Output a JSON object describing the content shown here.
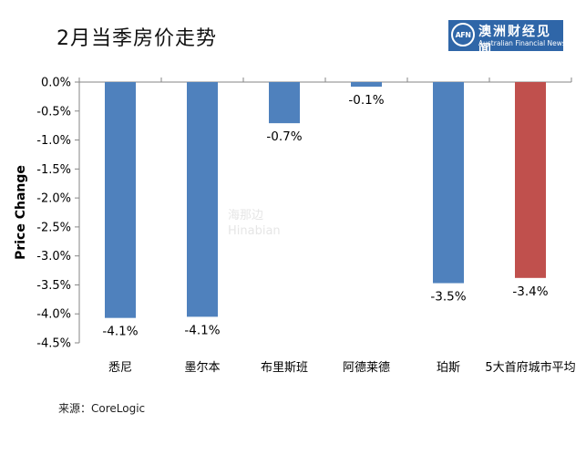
{
  "header": {
    "title": "2月当季房价走势"
  },
  "logo": {
    "mark": "AFN",
    "name_cn": "澳洲财经见闻",
    "name_en": "Australian Financial News"
  },
  "watermark": {
    "cn": "海那边",
    "en": "Hinabian"
  },
  "source": "来源：CoreLogic",
  "colors": {
    "bar_default": "#4f81bd",
    "bar_highlight": "#c0504d",
    "axis": "#868686"
  },
  "chart_data": {
    "type": "bar",
    "title": "2月当季房价走势",
    "xlabel": "",
    "ylabel": "Price Change",
    "categories": [
      "悉尼",
      "墨尔本",
      "布里斯班",
      "阿德莱德",
      "珀斯",
      "5大首府城市平均"
    ],
    "values": [
      -4.1,
      -4.1,
      -0.7,
      -0.1,
      -3.5,
      -3.4
    ],
    "data_labels": [
      "-4.1%",
      "-4.1%",
      "-0.7%",
      "-0.1%",
      "-3.5%",
      "-3.4%"
    ],
    "bar_heights": [
      -4.07,
      -4.05,
      -0.71,
      -0.08,
      -3.47,
      -3.38
    ],
    "highlight_index": 5,
    "ylim": [
      -4.5,
      0
    ],
    "yticks": [
      0,
      -0.5,
      -1.0,
      -1.5,
      -2.0,
      -2.5,
      -3.0,
      -3.5,
      -4.0,
      -4.5
    ],
    "ytick_labels": [
      "0.0%",
      "-0.5%",
      "-1.0%",
      "-1.5%",
      "-2.0%",
      "-2.5%",
      "-3.0%",
      "-3.5%",
      "-4.0%",
      "-4.5%"
    ],
    "grid": false,
    "legend": "none"
  }
}
